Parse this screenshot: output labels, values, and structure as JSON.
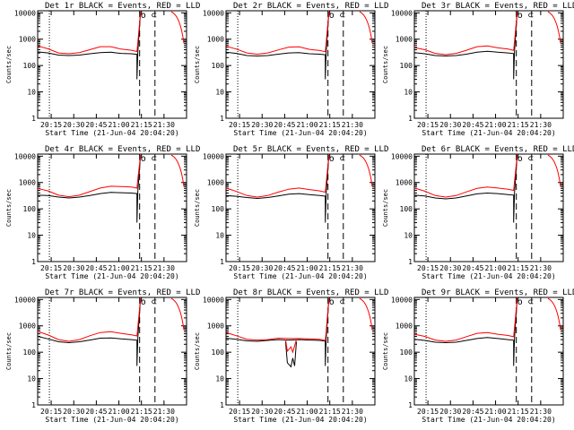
{
  "chart_data": {
    "type": "line",
    "layout": "3x3 grid",
    "xlabel": "Start Time (21-Jun-04 20:04:20)",
    "ylabel": "Counts/sec",
    "yscale": "log",
    "ylim": [
      1,
      12000
    ],
    "xlim": [
      20.1,
      21.75
    ],
    "x_ticks": [
      20.25,
      20.5,
      20.75,
      21.0,
      21.25,
      21.5
    ],
    "x_tick_labels": [
      "20:15",
      "20:30",
      "20:45",
      "21:00",
      "21:15",
      "21:30"
    ],
    "y_ticks": [
      1,
      10,
      100,
      1000,
      10000
    ],
    "y_tick_labels": [
      "1",
      "10",
      "100",
      "1000",
      "10000"
    ],
    "vertical_lines": [
      {
        "x": 20.23,
        "style": "dotted"
      },
      {
        "x": 21.23,
        "style": "dashed"
      },
      {
        "x": 21.4,
        "style": "dashed"
      }
    ],
    "marker_text": "o ⊂",
    "series_colors": {
      "events": "#000000",
      "lld": "#ff0000"
    },
    "panels": [
      {
        "title": "Det 1r BLACK = Events, RED = LLD",
        "events": [
          330,
          300,
          250,
          240,
          250,
          280,
          310,
          320,
          290,
          280
        ],
        "lld": [
          560,
          430,
          300,
          280,
          310,
          400,
          520,
          520,
          420,
          380
        ],
        "dip": false
      },
      {
        "title": "Det 2r BLACK = Events, RED = LLD",
        "events": [
          320,
          290,
          240,
          230,
          240,
          270,
          300,
          310,
          280,
          270
        ],
        "lld": [
          540,
          420,
          300,
          270,
          300,
          390,
          500,
          510,
          410,
          370
        ],
        "dip": false
      },
      {
        "title": "Det 3r BLACK = Events, RED = LLD",
        "events": [
          310,
          280,
          240,
          230,
          240,
          270,
          320,
          350,
          320,
          300
        ],
        "lld": [
          480,
          400,
          290,
          260,
          290,
          380,
          520,
          560,
          470,
          420
        ],
        "dip": false
      },
      {
        "title": "Det 4r BLACK = Events, RED = LLD",
        "events": [
          330,
          320,
          280,
          260,
          280,
          320,
          380,
          420,
          410,
          400
        ],
        "lld": [
          600,
          480,
          330,
          290,
          330,
          450,
          620,
          720,
          700,
          680
        ],
        "dip": false
      },
      {
        "title": "Det 5r BLACK = Events, RED = LLD",
        "events": [
          320,
          300,
          270,
          250,
          270,
          310,
          360,
          380,
          350,
          320
        ],
        "lld": [
          620,
          460,
          320,
          280,
          320,
          430,
          560,
          620,
          540,
          480
        ],
        "dip": false
      },
      {
        "title": "Det 6r BLACK = Events, RED = LLD",
        "events": [
          330,
          310,
          260,
          240,
          260,
          310,
          370,
          400,
          380,
          350
        ],
        "lld": [
          620,
          470,
          320,
          280,
          320,
          440,
          600,
          680,
          620,
          560
        ],
        "dip": false
      },
      {
        "title": "Det 7r BLACK = Events, RED = LLD",
        "events": [
          400,
          320,
          250,
          230,
          250,
          290,
          340,
          350,
          320,
          300
        ],
        "lld": [
          620,
          450,
          300,
          260,
          300,
          420,
          560,
          600,
          520,
          460
        ],
        "dip": false
      },
      {
        "title": "Det 8r BLACK = Events, RED = LLD",
        "events": [
          340,
          310,
          270,
          260,
          280,
          300,
          290,
          300,
          290,
          280
        ],
        "lld": [
          560,
          420,
          310,
          290,
          300,
          340,
          330,
          330,
          320,
          310
        ],
        "dip": true
      },
      {
        "title": "Det 9r BLACK = Events, RED = LLD",
        "events": [
          310,
          280,
          240,
          230,
          240,
          280,
          330,
          360,
          330,
          300
        ],
        "lld": [
          480,
          400,
          290,
          260,
          290,
          390,
          520,
          560,
          480,
          430
        ],
        "dip": false
      }
    ]
  }
}
